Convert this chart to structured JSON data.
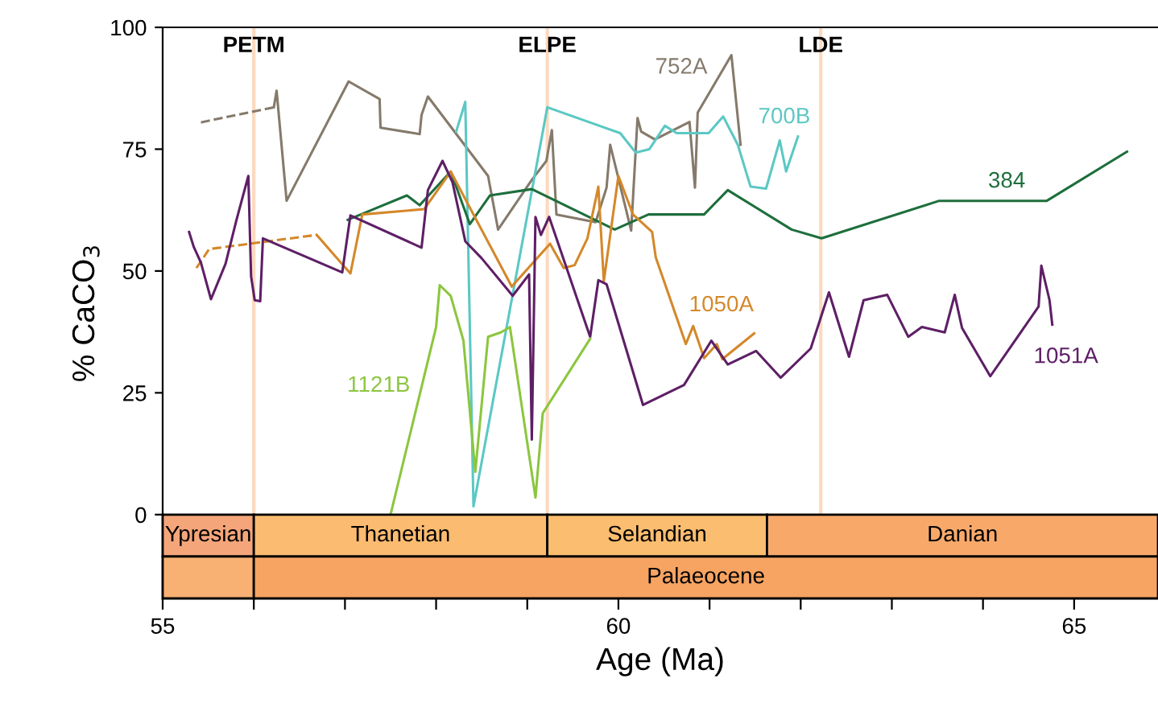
{
  "chart_data": [
    {
      "type": "line",
      "ylabel": "% CaCO$_{3}$",
      "xlabel": "Age (Ma)",
      "xlim": [
        55,
        65.92
      ],
      "ylim": [
        -17.2,
        100
      ],
      "yticks": [
        0,
        25,
        50,
        75,
        100
      ],
      "grid": false,
      "xticks": [
        55,
        {
          "value": 56,
          "label": null
        },
        {
          "value": 57,
          "label": null
        },
        {
          "value": 58,
          "label": null
        },
        {
          "value": 59,
          "label": null
        },
        60,
        {
          "value": 61,
          "label": null
        },
        {
          "value": 62,
          "label": null
        },
        {
          "value": 63,
          "label": null
        },
        {
          "value": 64,
          "label": null
        },
        65
      ],
      "bands": [
        {
          "axis": "x",
          "from": 55,
          "to": 56.0,
          "label": "Ypresian",
          "color": "#f4a57a"
        },
        {
          "axis": "x",
          "from": 56.0,
          "to": 59.22,
          "label": "Thanetian",
          "color": "#fbbb70"
        },
        {
          "axis": "x",
          "from": 59.22,
          "to": 61.63,
          "label": "Selandian",
          "color": "#fbbd6f"
        },
        {
          "axis": "x",
          "from": 61.63,
          "to": 65.92,
          "label": "Danian",
          "color": "#f8a96a"
        },
        {
          "axis": "x",
          "from": 55,
          "to": 56.0,
          "label": null,
          "color": "#f8b073"
        },
        {
          "axis": "x",
          "from": 56.0,
          "to": 65.92,
          "label": "Palaeocene",
          "color": "#f7a462"
        }
      ],
      "ref_lines": [
        {
          "axis": "x",
          "value": 56.0,
          "label": "PETM",
          "color": "#fcd9bf"
        },
        {
          "axis": "x",
          "value": 59.22,
          "label": "ELPE",
          "color": "#fcd9bf"
        },
        {
          "axis": "x",
          "value": 62.22,
          "label": "LDE",
          "color": "#fcd9bf"
        }
      ],
      "series": [
        {
          "color": "#857a6b",
          "line_style": "dashed",
          "x": [
            55.42,
            56.22
          ],
          "values": [
            80.5,
            83.6
          ]
        },
        {
          "name": "752A",
          "color": "#857a6b",
          "line_style": "solid",
          "x": [
            56.22,
            56.25,
            56.36,
            57.04,
            57.38,
            57.39,
            57.82,
            57.84,
            57.91,
            58.57,
            58.68,
            59.05,
            59.21,
            59.27,
            59.32,
            59.75,
            59.87,
            59.91,
            60.14,
            60.21,
            60.25,
            60.4,
            60.78,
            60.84,
            60.87,
            61.24,
            61.34
          ],
          "values": [
            83.6,
            87,
            64.4,
            88.9,
            85.3,
            79.4,
            78.1,
            82,
            85.8,
            69.5,
            58.5,
            68.7,
            72.6,
            78.9,
            61.6,
            60,
            67.1,
            75.9,
            58.3,
            81.4,
            78.6,
            77,
            80.6,
            67.1,
            82.5,
            94.3,
            75.9
          ]
        },
        {
          "name": "700B",
          "color": "#5bc8c4",
          "line_style": "solid",
          "x": [
            58.22,
            58.32,
            58.41,
            59.22,
            60.02,
            60.19,
            60.34,
            60.51,
            60.64,
            60.99,
            61.15,
            61.31,
            61.45,
            61.62,
            61.77,
            61.84,
            61.97
          ],
          "values": [
            78.6,
            84.7,
            1.7,
            83.6,
            78.3,
            74.3,
            75,
            79.8,
            78.3,
            78.3,
            81.7,
            75.9,
            67.3,
            66.9,
            76.8,
            70.4,
            77.6
          ]
        },
        {
          "name": "384",
          "color": "#1e6e3c",
          "line_style": "solid",
          "x": [
            57.03,
            57.68,
            57.82,
            58.16,
            58.37,
            58.59,
            59.05,
            59.96,
            60.33,
            60.94,
            61.2,
            61.9,
            62.23,
            63.52,
            64.7,
            65.58
          ],
          "values": [
            60.5,
            65.5,
            63.5,
            70.4,
            59.6,
            65.5,
            66.8,
            58.5,
            61.6,
            61.6,
            66.6,
            58.5,
            56.7,
            64.4,
            64.4,
            74.5
          ]
        },
        {
          "color": "#d4882a",
          "line_style": "dashed",
          "x": [
            55.37,
            55.51,
            56.69
          ],
          "values": [
            50.6,
            54.5,
            57.4
          ]
        },
        {
          "name": "1050A",
          "color": "#d4882a",
          "line_style": "solid",
          "x": [
            56.69,
            56.98,
            57.06,
            57.19,
            57.87,
            58.16,
            58.83,
            59.25,
            59.4,
            59.52,
            59.66,
            59.78,
            59.84,
            60.0,
            60.16,
            60.37,
            60.41,
            60.74,
            60.82,
            60.94,
            61.08,
            61.14,
            61.49
          ],
          "values": [
            57.4,
            51.2,
            49.5,
            61.6,
            62.7,
            70.4,
            46.8,
            55.6,
            50.6,
            51.2,
            56.7,
            67.3,
            47.9,
            69.5,
            61.6,
            58,
            52.8,
            35,
            38.7,
            32.1,
            35,
            31.9,
            37.2
          ]
        },
        {
          "name": "1051A",
          "color": "#5e1f66",
          "line_style": "solid",
          "x": [
            55.29,
            55.34,
            55.42,
            55.53,
            55.69,
            55.81,
            55.94,
            55.97,
            56.01,
            56.07,
            56.1,
            56.97,
            57.06,
            57.84,
            57.91,
            58.07,
            58.18,
            58.32,
            58.5,
            58.84,
            59.02,
            59.05,
            59.09,
            59.15,
            59.24,
            59.69,
            59.78,
            59.87,
            60.27,
            60.72,
            61.02,
            61.2,
            61.51,
            61.78,
            62.11,
            62.31,
            62.53,
            62.69,
            62.95,
            63.18,
            63.33,
            63.58,
            63.69,
            63.77,
            64.08,
            64.61,
            64.64,
            64.73,
            64.76
          ],
          "values": [
            58,
            55,
            51.7,
            44.2,
            51.5,
            60.5,
            69.5,
            48.9,
            44,
            43.8,
            56.7,
            49.7,
            61.4,
            54.8,
            66.6,
            72.6,
            68.2,
            56.1,
            52.6,
            44.9,
            49.3,
            15.4,
            61.1,
            57.4,
            61.1,
            36.5,
            48.1,
            47.3,
            22.5,
            26.6,
            35.7,
            30.8,
            33.6,
            28.1,
            34.1,
            45.6,
            32.4,
            44,
            45.1,
            36.5,
            38.5,
            37.4,
            45.1,
            38.3,
            28.4,
            42.7,
            51.1,
            44,
            39
          ]
        },
        {
          "name": "1121B",
          "color": "#8cc63f",
          "line_style": "solid",
          "x": [
            57.5,
            58.0,
            58.04,
            58.16,
            58.3,
            58.43,
            58.57,
            58.71,
            58.81,
            59.09,
            59.17,
            59.69
          ],
          "values": [
            0,
            38.5,
            47.1,
            44.9,
            35.7,
            8.8,
            36.5,
            37.4,
            38.5,
            3.5,
            20.8,
            36.1
          ]
        }
      ]
    }
  ]
}
